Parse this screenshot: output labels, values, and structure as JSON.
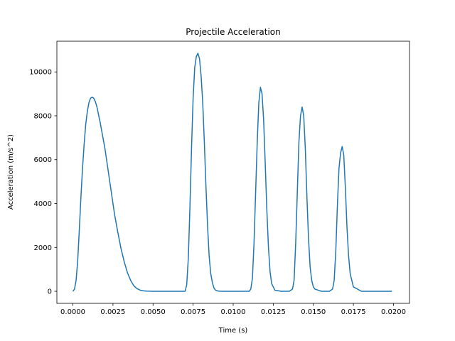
{
  "chart_data": {
    "type": "line",
    "title": "Projectile Acceleration",
    "xlabel": "Time (s)",
    "ylabel": "Acceleration (m/s^2)",
    "xlim": [
      -0.001,
      0.021
    ],
    "ylim": [
      -550,
      11400
    ],
    "grid": false,
    "legend": "none",
    "x_ticks": [
      0.0,
      0.0025,
      0.005,
      0.0075,
      0.01,
      0.0125,
      0.015,
      0.0175,
      0.02
    ],
    "x_tick_labels": [
      "0.0000",
      "0.0025",
      "0.0050",
      "0.0075",
      "0.0100",
      "0.0125",
      "0.0150",
      "0.0175",
      "0.0200"
    ],
    "y_ticks": [
      0,
      2000,
      4000,
      6000,
      8000,
      10000
    ],
    "y_tick_labels": [
      "0",
      "2000",
      "4000",
      "6000",
      "8000",
      "10000"
    ],
    "series": [
      {
        "color": "#1f77b4",
        "x": [
          0.0,
          0.0001,
          0.0002,
          0.0003,
          0.0004,
          0.0005,
          0.0006,
          0.0007,
          0.0008,
          0.0009,
          0.001,
          0.0011,
          0.0012,
          0.0013,
          0.0014,
          0.0015,
          0.0016,
          0.0017,
          0.0018,
          0.002,
          0.0022,
          0.0024,
          0.0026,
          0.0028,
          0.003,
          0.0032,
          0.0034,
          0.0036,
          0.0038,
          0.004,
          0.0042,
          0.0044,
          0.0046,
          0.005,
          0.0055,
          0.006,
          0.0065,
          0.007,
          0.0071,
          0.0072,
          0.0073,
          0.0074,
          0.0075,
          0.0076,
          0.0077,
          0.0078,
          0.0079,
          0.008,
          0.0081,
          0.0082,
          0.0083,
          0.0084,
          0.0085,
          0.0086,
          0.0087,
          0.0088,
          0.0089,
          0.009,
          0.0091,
          0.0092,
          0.0094,
          0.0096,
          0.01,
          0.0105,
          0.011,
          0.0111,
          0.0112,
          0.0113,
          0.0114,
          0.0115,
          0.0116,
          0.0117,
          0.0118,
          0.0119,
          0.012,
          0.0121,
          0.0122,
          0.0123,
          0.0124,
          0.0126,
          0.013,
          0.0135,
          0.0137,
          0.0138,
          0.0139,
          0.014,
          0.0141,
          0.0142,
          0.0143,
          0.0144,
          0.0145,
          0.0146,
          0.0147,
          0.0148,
          0.0149,
          0.015,
          0.0151,
          0.0153,
          0.0155,
          0.016,
          0.0162,
          0.0163,
          0.0164,
          0.0165,
          0.0166,
          0.0167,
          0.0168,
          0.0169,
          0.017,
          0.0171,
          0.0172,
          0.0173,
          0.0175,
          0.018,
          0.019,
          0.0199
        ],
        "y": [
          0,
          100,
          500,
          1400,
          2800,
          4300,
          5600,
          6700,
          7600,
          8200,
          8600,
          8800,
          8850,
          8800,
          8650,
          8400,
          8050,
          7700,
          7300,
          6500,
          5500,
          4500,
          3500,
          2700,
          1950,
          1350,
          850,
          500,
          250,
          120,
          50,
          20,
          10,
          0,
          0,
          0,
          0,
          0,
          300,
          1500,
          3800,
          6500,
          8800,
          10200,
          10700,
          10850,
          10600,
          9800,
          8600,
          6800,
          4800,
          3000,
          1600,
          800,
          400,
          150,
          50,
          20,
          10,
          0,
          0,
          0,
          0,
          0,
          0,
          100,
          600,
          2200,
          4500,
          6800,
          8600,
          9300,
          9000,
          7800,
          5800,
          3700,
          2000,
          900,
          350,
          50,
          0,
          0,
          100,
          500,
          2200,
          4500,
          6800,
          8000,
          8400,
          8000,
          6500,
          4300,
          2400,
          1100,
          500,
          200,
          100,
          50,
          0,
          0,
          100,
          500,
          1800,
          3900,
          5600,
          6300,
          6600,
          6200,
          4700,
          2900,
          1600,
          800,
          200,
          0,
          0,
          0
        ]
      }
    ]
  }
}
